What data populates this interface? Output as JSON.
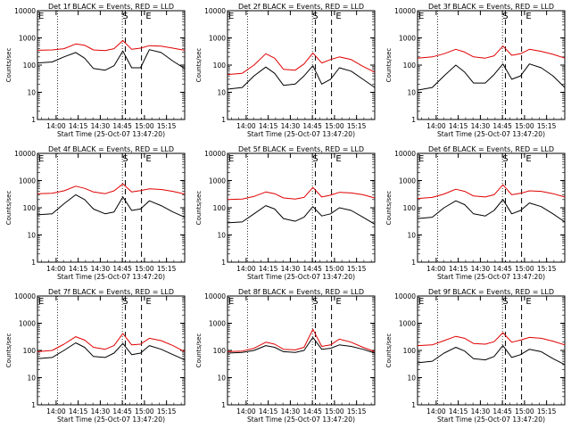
{
  "figure": {
    "panel_titles": [
      "Det 1f BLACK = Events, RED = LLD",
      "Det 2f BLACK = Events, RED = LLD",
      "Det 3f BLACK = Events, RED = LLD",
      "Det 4f BLACK = Events, RED = LLD",
      "Det 5f BLACK = Events, RED = LLD",
      "Det 6f BLACK = Events, RED = LLD",
      "Det 7f BLACK = Events, RED = LLD",
      "Det 8f BLACK = Events, RED = LLD",
      "Det 9f BLACK = Events, RED = LLD"
    ],
    "xlabel": "Start Time (25-Oct-07 13:47:20)",
    "ylabel": "Counts/sec",
    "x_tick_labels": [
      "14:00",
      "14:15",
      "14:30",
      "14:45",
      "15:00",
      "15:15"
    ],
    "y_tick_labels": [
      "1",
      "10",
      "100",
      "1000",
      "10000"
    ],
    "markers": {
      "E_left": "E",
      "S": "S",
      "E_right": "E"
    },
    "colors": {
      "events": "#000000",
      "lld": "#e00000",
      "axes": "#000000",
      "background": "#ffffff"
    }
  },
  "chart_data": {
    "type": "line",
    "layout": "3x3 grid of detector panels",
    "x_unit": "UT time (HH:MM)",
    "xlim": [
      "13:47:20",
      "15:27:20"
    ],
    "ylim": [
      1,
      10000
    ],
    "yscale": "log",
    "dotted_lines_at": [
      "14:01",
      "14:45"
    ],
    "dashed_lines_at": [
      "14:47",
      "14:58"
    ],
    "lld_peak_time": "14:49",
    "x_time_minutes": [
      0,
      10,
      18,
      26,
      32,
      38,
      46,
      52,
      58,
      64,
      70,
      76,
      84,
      92,
      100
    ],
    "panels": [
      {
        "id": "1f",
        "series": [
          {
            "name": "BLACK = Events",
            "color": "#000000",
            "values": [
              120,
              130,
              200,
              290,
              180,
              75,
              65,
              95,
              330,
              80,
              80,
              370,
              290,
              140,
              75
            ]
          },
          {
            "name": "RED = LLD",
            "color": "#e00000",
            "values": [
              350,
              360,
              400,
              600,
              540,
              360,
              340,
              400,
              800,
              380,
              420,
              520,
              500,
              420,
              350
            ]
          }
        ]
      },
      {
        "id": "2f",
        "series": [
          {
            "name": "BLACK = Events",
            "color": "#000000",
            "values": [
              13,
              15,
              40,
              85,
              50,
              18,
              20,
              40,
              95,
              20,
              30,
              80,
              60,
              30,
              15
            ]
          },
          {
            "name": "RED = LLD",
            "color": "#e00000",
            "values": [
              45,
              50,
              100,
              260,
              180,
              70,
              65,
              110,
              280,
              120,
              160,
              200,
              160,
              90,
              55
            ]
          }
        ]
      },
      {
        "id": "3f",
        "series": [
          {
            "name": "BLACK = Events",
            "color": "#000000",
            "values": [
              12,
              15,
              40,
              100,
              55,
              22,
              22,
              45,
              110,
              30,
              40,
              110,
              80,
              40,
              15
            ]
          },
          {
            "name": "RED = LLD",
            "color": "#e00000",
            "values": [
              180,
              200,
              260,
              380,
              300,
              200,
              180,
              220,
              500,
              230,
              260,
              380,
              320,
              250,
              180
            ]
          }
        ]
      },
      {
        "id": "4f",
        "series": [
          {
            "name": "BLACK = Events",
            "color": "#000000",
            "values": [
              55,
              60,
              140,
              300,
              200,
              90,
              60,
              70,
              250,
              80,
              90,
              180,
              120,
              70,
              45
            ]
          },
          {
            "name": "RED = LLD",
            "color": "#e00000",
            "values": [
              330,
              340,
              420,
              620,
              520,
              380,
              330,
              420,
              750,
              380,
              430,
              500,
              470,
              400,
              320
            ]
          }
        ]
      },
      {
        "id": "5f",
        "series": [
          {
            "name": "BLACK = Events",
            "color": "#000000",
            "values": [
              28,
              30,
              60,
              120,
              90,
              40,
              32,
              45,
              110,
              50,
              60,
              100,
              80,
              45,
              25
            ]
          },
          {
            "name": "RED = LLD",
            "color": "#e00000",
            "values": [
              200,
              210,
              260,
              380,
              330,
              230,
              210,
              240,
              560,
              250,
              290,
              370,
              350,
              300,
              230
            ]
          }
        ]
      },
      {
        "id": "6f",
        "series": [
          {
            "name": "BLACK = Events",
            "color": "#000000",
            "values": [
              40,
              45,
              100,
              180,
              130,
              60,
              50,
              80,
              200,
              60,
              80,
              150,
              110,
              60,
              30
            ]
          },
          {
            "name": "RED = LLD",
            "color": "#e00000",
            "values": [
              220,
              240,
              320,
              480,
              400,
              270,
              250,
              300,
              700,
              300,
              340,
              420,
              400,
              330,
              250
            ]
          }
        ]
      },
      {
        "id": "7f",
        "series": [
          {
            "name": "BLACK = Events",
            "color": "#000000",
            "values": [
              50,
              55,
              100,
              190,
              130,
              60,
              55,
              80,
              180,
              70,
              80,
              150,
              110,
              70,
              45
            ]
          },
          {
            "name": "RED = LLD",
            "color": "#e00000",
            "values": [
              90,
              100,
              170,
              320,
              240,
              130,
              110,
              150,
              420,
              160,
              170,
              280,
              230,
              150,
              90
            ]
          }
        ]
      },
      {
        "id": "8f",
        "series": [
          {
            "name": "BLACK = Events",
            "color": "#000000",
            "values": [
              80,
              85,
              100,
              150,
              130,
              90,
              85,
              100,
              300,
              110,
              120,
              160,
              140,
              110,
              80
            ]
          },
          {
            "name": "RED = LLD",
            "color": "#e00000",
            "values": [
              90,
              95,
              120,
              200,
              170,
              110,
              105,
              130,
              600,
              140,
              160,
              260,
              200,
              130,
              90
            ]
          }
        ]
      },
      {
        "id": "9f",
        "series": [
          {
            "name": "BLACK = Events",
            "color": "#000000",
            "values": [
              35,
              40,
              80,
              130,
              95,
              50,
              45,
              60,
              150,
              55,
              70,
              110,
              90,
              50,
              30
            ]
          },
          {
            "name": "RED = LLD",
            "color": "#e00000",
            "values": [
              150,
              160,
              230,
              330,
              280,
              180,
              170,
              210,
              450,
              200,
              240,
              300,
              280,
              220,
              160
            ]
          }
        ]
      }
    ]
  }
}
